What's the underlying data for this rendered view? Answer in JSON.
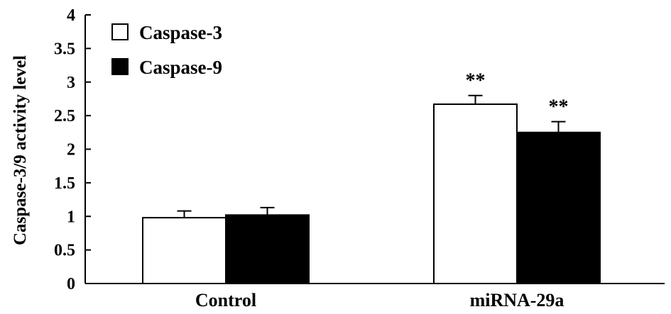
{
  "chart_data": {
    "type": "bar",
    "categories": [
      "Control",
      "miRNA-29a"
    ],
    "series": [
      {
        "name": "Caspase-3",
        "values": [
          0.98,
          2.67
        ],
        "errors": [
          0.1,
          0.13
        ],
        "color": "#ffffff"
      },
      {
        "name": "Caspase-9",
        "values": [
          1.02,
          2.25
        ],
        "errors": [
          0.11,
          0.16
        ],
        "color": "#000000"
      }
    ],
    "annotations": [
      {
        "category": "miRNA-29a",
        "series": "Caspase-3",
        "text": "**"
      },
      {
        "category": "miRNA-29a",
        "series": "Caspase-9",
        "text": "**"
      }
    ],
    "ylabel": "Caspase-3/9  activity level",
    "ylim": [
      0,
      4
    ],
    "yticks": [
      "0",
      "0.5",
      "1",
      "1.5",
      "2",
      "2.5",
      "3",
      "3.5",
      "4"
    ],
    "grid": false,
    "legend_position": "top-left"
  }
}
